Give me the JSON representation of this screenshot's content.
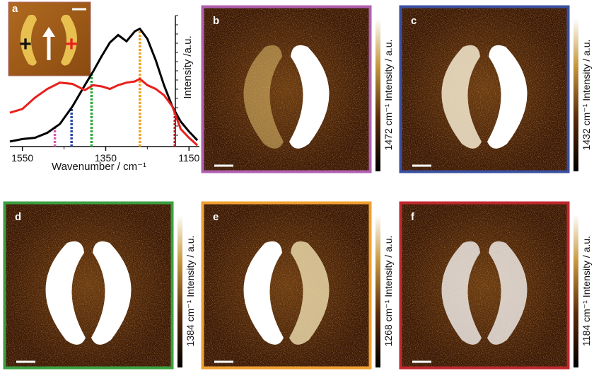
{
  "chart_data": {
    "type": "line",
    "panel_label": "a",
    "inset": {
      "left_sign": "+",
      "right_sign": "+"
    },
    "x_label": "Wavenumber / cm⁻¹",
    "y_label": "Intensity /a.u.",
    "xlim": [
      1580,
      1125
    ],
    "xticks": [
      1550,
      1350,
      1150
    ],
    "xminor_ticks": [
      1450,
      1250
    ],
    "ylim": [
      0,
      1
    ],
    "x": [
      1580,
      1550,
      1520,
      1490,
      1460,
      1430,
      1400,
      1380,
      1360,
      1340,
      1320,
      1300,
      1280,
      1268,
      1250,
      1230,
      1210,
      1190,
      1170,
      1150,
      1130
    ],
    "series": [
      {
        "color": "#000000",
        "values": [
          0.04,
          0.06,
          0.07,
          0.11,
          0.18,
          0.32,
          0.49,
          0.6,
          0.72,
          0.83,
          0.89,
          0.84,
          0.92,
          0.94,
          0.86,
          0.69,
          0.49,
          0.32,
          0.2,
          0.12,
          0.05
        ]
      },
      {
        "color": "#e8201c",
        "values": [
          0.27,
          0.3,
          0.39,
          0.46,
          0.51,
          0.5,
          0.45,
          0.49,
          0.48,
          0.46,
          0.49,
          0.51,
          0.52,
          0.54,
          0.49,
          0.46,
          0.41,
          0.32,
          0.14,
          0.07,
          0.01
        ]
      }
    ],
    "markers": [
      {
        "value": 1472,
        "color": "#d45ab8"
      },
      {
        "value": 1432,
        "color": "#2a46a8"
      },
      {
        "value": 1384,
        "color": "#2aa83a"
      },
      {
        "value": 1268,
        "color": "#f0a020"
      },
      {
        "value": 1184,
        "color": "#b0202a"
      }
    ]
  },
  "panels": [
    {
      "label": "b",
      "caption": "1472 cm⁻¹ Intensity / a.u.",
      "color": "#b060b0"
    },
    {
      "label": "c",
      "caption": "1432 cm⁻¹ Intensity / a.u.",
      "color": "#3a4fa0"
    },
    {
      "label": "d",
      "caption": "1384 cm⁻¹ Intensity / a.u.",
      "color": "#3aa040"
    },
    {
      "label": "e",
      "caption": "1268 cm⁻¹ Intensity / a.u.",
      "color": "#f0a030"
    },
    {
      "label": "f",
      "caption": "1184 cm⁻¹ Intensity / a.u.",
      "color": "#c0282e"
    }
  ]
}
